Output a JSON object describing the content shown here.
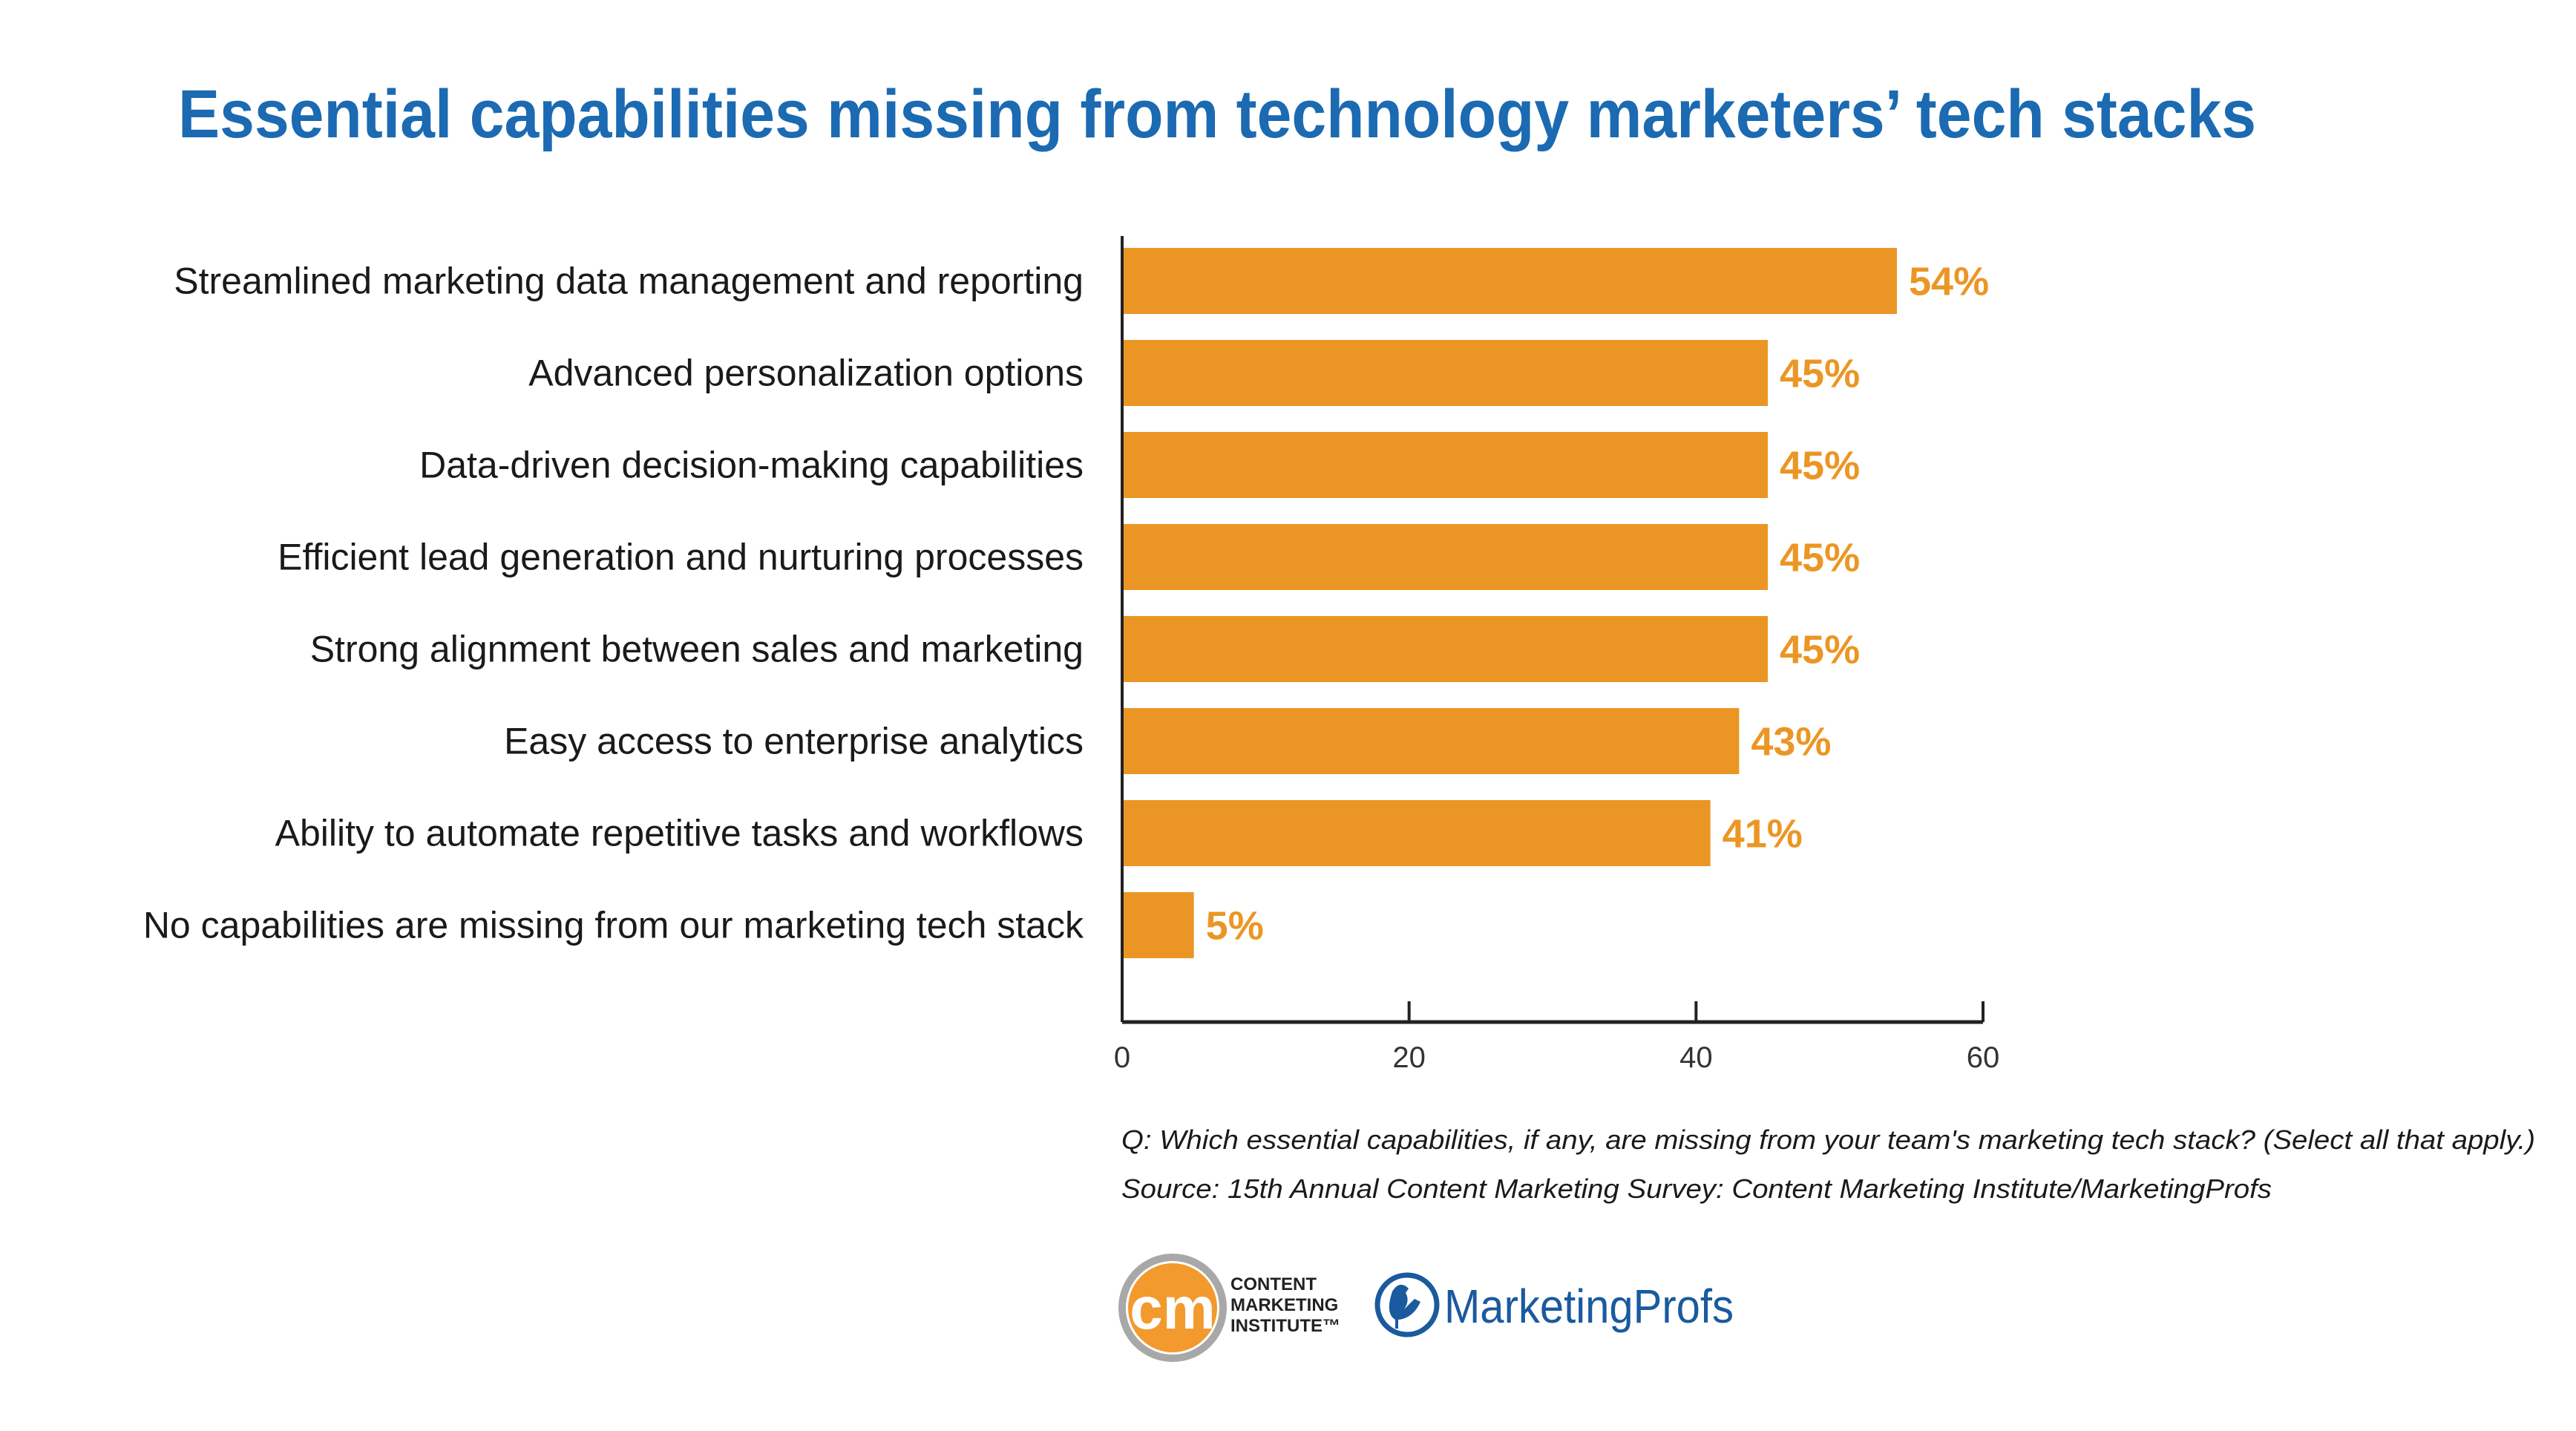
{
  "colors": {
    "title": "#1B6AB2",
    "bar": "#EB9624",
    "axis": "#222222",
    "brand_blue": "#1A5A9E",
    "brand_orange": "#F29A2E"
  },
  "chart_data": {
    "type": "bar",
    "orientation": "horizontal",
    "title": "Essential capabilities missing from technology marketers’ tech stacks",
    "categories": [
      "Streamlined marketing data management and reporting",
      "Advanced personalization options",
      "Data-driven decision-making capabilities",
      "Efficient lead generation and nurturing processes",
      "Strong alignment between sales and marketing",
      "Easy access to enterprise analytics",
      "Ability to automate repetitive tasks and workflows",
      "No capabilities are missing from our marketing tech stack"
    ],
    "values": [
      54,
      45,
      45,
      45,
      45,
      43,
      41,
      5
    ],
    "value_labels": [
      "54%",
      "45%",
      "45%",
      "45%",
      "45%",
      "43%",
      "41%",
      "5%"
    ],
    "xlim": [
      0,
      60
    ],
    "xticks": [
      "0",
      "20",
      "40",
      "60"
    ],
    "grid": false,
    "legend": "none"
  },
  "footnote": {
    "question": "Q: Which essential capabilities, if any, are missing from your team's marketing tech stack? (Select all that apply.)",
    "source": "Source: 15th Annual Content Marketing Survey: Content Marketing Institute/MarketingProfs"
  },
  "logos": {
    "cmi": {
      "mark": "cm",
      "lines": [
        "CONTENT",
        "MARKETING",
        "INSTITUTE™"
      ]
    },
    "marketingprofs": {
      "text": "MarketingProfs"
    }
  }
}
